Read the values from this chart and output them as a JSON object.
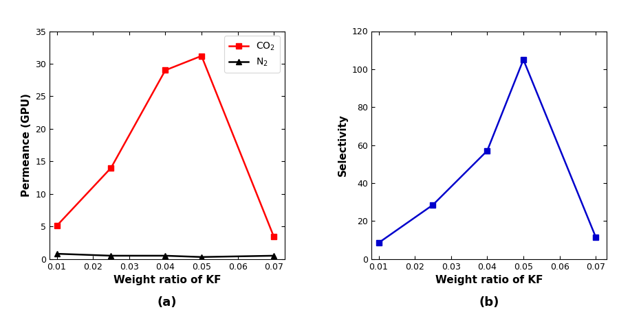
{
  "x_values": [
    0.01,
    0.025,
    0.04,
    0.05,
    0.07
  ],
  "co2_values": [
    5.1,
    14.0,
    29.0,
    31.2,
    3.4
  ],
  "n2_values": [
    0.8,
    0.5,
    0.5,
    0.3,
    0.5
  ],
  "selectivity_values": [
    8.5,
    28.5,
    57.0,
    105.0,
    11.5
  ],
  "co2_color": "#ff0000",
  "n2_color": "#000000",
  "sel_color": "#0000cc",
  "xlabel": "Weight ratio of KF",
  "ylabel_a": "Permeance (GPU)",
  "ylabel_b": "Selectivity",
  "label_a": "(a)",
  "label_b": "(b)",
  "legend_co2": "CO$_2$",
  "legend_n2": "N$_2$",
  "ylim_a": [
    0,
    35
  ],
  "ylim_b": [
    0,
    120
  ],
  "yticks_a": [
    0,
    5,
    10,
    15,
    20,
    25,
    30,
    35
  ],
  "yticks_b": [
    0,
    20,
    40,
    60,
    80,
    100,
    120
  ],
  "xticks": [
    0.01,
    0.02,
    0.03,
    0.04,
    0.05,
    0.06,
    0.07
  ],
  "xtick_labels": [
    "0.01",
    "0.02",
    "0.03",
    "0.04",
    "0.05",
    "0.06",
    "0.07"
  ],
  "bg_color": "#f0f0f0"
}
